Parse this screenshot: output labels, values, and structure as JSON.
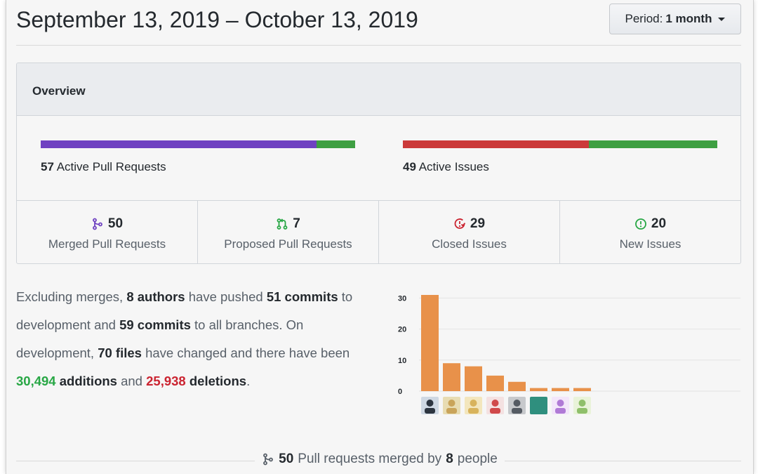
{
  "header": {
    "date_range": "September 13, 2019 – October 13, 2019",
    "period_prefix": "Period:",
    "period_value": "1 month"
  },
  "overview": {
    "title": "Overview",
    "pull_requests": {
      "count": "57",
      "label": "Active Pull Requests",
      "merged_fraction": 0.877,
      "merged_color": "#6f42c1",
      "proposed_color": "#3e9f42"
    },
    "issues": {
      "count": "49",
      "label": "Active Issues",
      "closed_fraction": 0.592,
      "closed_color": "#cb3a3a",
      "new_color": "#3e9f42"
    },
    "stats": [
      {
        "icon": "git-merge-icon",
        "value": "50",
        "label": "Merged Pull Requests",
        "color": "#6f42c1"
      },
      {
        "icon": "git-pull-request-icon",
        "value": "7",
        "label": "Proposed Pull Requests",
        "color": "#28a745"
      },
      {
        "icon": "issue-closed-icon",
        "value": "29",
        "label": "Closed Issues",
        "color": "#cb2431"
      },
      {
        "icon": "issue-opened-icon",
        "value": "20",
        "label": "New Issues",
        "color": "#28a745"
      }
    ]
  },
  "summary": {
    "t1": "Excluding merges, ",
    "authors": "8 authors",
    "t2": " have pushed ",
    "commits_dev": "51 commits",
    "t3": " to development and ",
    "commits_all": "59 commits",
    "t4": " to all branches. On development, ",
    "files": "70 files",
    "t5": " have changed and there have been ",
    "additions_num": "30,494",
    "additions_word": "additions",
    "t6": " and ",
    "deletions_num": "25,938",
    "deletions_word": "deletions",
    "t7": "."
  },
  "chart_data": {
    "type": "bar",
    "categories": [
      "author-1",
      "author-2",
      "author-3",
      "author-4",
      "author-5",
      "author-6",
      "author-7",
      "author-8"
    ],
    "values": [
      31,
      9,
      8,
      5,
      3,
      1,
      1,
      1
    ],
    "ylim": [
      0,
      31
    ],
    "yticks": [
      "30",
      "20",
      "10",
      "0"
    ],
    "grid": true,
    "bar_color": "#e8914a"
  },
  "footer": {
    "count": "50",
    "t1": " Pull requests merged by ",
    "people": "8",
    "t2": " people",
    "icon": "git-merge-icon"
  }
}
